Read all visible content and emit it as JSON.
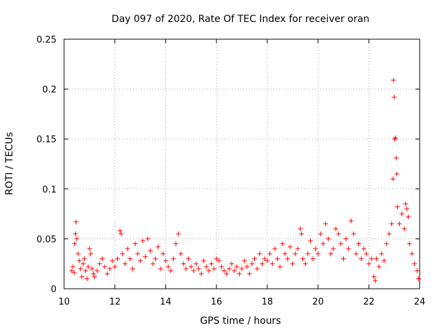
{
  "chart_data": {
    "type": "scatter",
    "title": "Day 097 of 2020, Rate Of TEC Index for receiver oran",
    "xlabel": "GPS time / hours",
    "ylabel": "ROTI / TECUs",
    "xlim": [
      10,
      24
    ],
    "ylim": [
      0,
      0.25
    ],
    "x_ticks": [
      10,
      12,
      14,
      16,
      18,
      20,
      22,
      24
    ],
    "x_tick_labels": [
      "10",
      "12",
      "14",
      "16",
      "18",
      "20",
      "22",
      "24"
    ],
    "y_ticks": [
      0,
      0.05,
      0.1,
      0.15,
      0.2,
      0.25
    ],
    "y_tick_labels": [
      "0",
      "0.05",
      "0.1",
      "0.15",
      "0.2",
      "0.25"
    ],
    "grid": true,
    "marker": "+",
    "color": "#ff0000",
    "series": [
      {
        "points": [
          [
            10.3,
            0.018
          ],
          [
            10.35,
            0.022
          ],
          [
            10.4,
            0.016
          ],
          [
            10.42,
            0.045
          ],
          [
            10.45,
            0.055
          ],
          [
            10.47,
            0.067
          ],
          [
            10.5,
            0.05
          ],
          [
            10.55,
            0.035
          ],
          [
            10.6,
            0.028
          ],
          [
            10.65,
            0.02
          ],
          [
            10.7,
            0.012
          ],
          [
            10.75,
            0.025
          ],
          [
            10.8,
            0.03
          ],
          [
            10.85,
            0.018
          ],
          [
            10.9,
            0.01
          ],
          [
            10.95,
            0.022
          ],
          [
            11.0,
            0.04
          ],
          [
            11.05,
            0.035
          ],
          [
            11.1,
            0.02
          ],
          [
            11.15,
            0.015
          ],
          [
            11.2,
            0.012
          ],
          [
            11.3,
            0.018
          ],
          [
            11.4,
            0.025
          ],
          [
            11.5,
            0.03
          ],
          [
            11.6,
            0.022
          ],
          [
            11.7,
            0.015
          ],
          [
            11.8,
            0.02
          ],
          [
            11.9,
            0.028
          ],
          [
            12.0,
            0.022
          ],
          [
            12.1,
            0.03
          ],
          [
            12.2,
            0.058
          ],
          [
            12.25,
            0.055
          ],
          [
            12.3,
            0.035
          ],
          [
            12.4,
            0.025
          ],
          [
            12.5,
            0.04
          ],
          [
            12.6,
            0.03
          ],
          [
            12.7,
            0.02
          ],
          [
            12.8,
            0.045
          ],
          [
            12.9,
            0.035
          ],
          [
            13.0,
            0.028
          ],
          [
            13.1,
            0.048
          ],
          [
            13.2,
            0.032
          ],
          [
            13.3,
            0.05
          ],
          [
            13.4,
            0.038
          ],
          [
            13.5,
            0.025
          ],
          [
            13.6,
            0.03
          ],
          [
            13.7,
            0.042
          ],
          [
            13.8,
            0.02
          ],
          [
            13.9,
            0.035
          ],
          [
            14.0,
            0.028
          ],
          [
            14.1,
            0.022
          ],
          [
            14.2,
            0.018
          ],
          [
            14.3,
            0.03
          ],
          [
            14.4,
            0.045
          ],
          [
            14.5,
            0.055
          ],
          [
            14.6,
            0.035
          ],
          [
            14.7,
            0.025
          ],
          [
            14.8,
            0.02
          ],
          [
            14.9,
            0.03
          ],
          [
            15.0,
            0.022
          ],
          [
            15.1,
            0.018
          ],
          [
            15.2,
            0.025
          ],
          [
            15.3,
            0.02
          ],
          [
            15.4,
            0.015
          ],
          [
            15.5,
            0.028
          ],
          [
            15.6,
            0.022
          ],
          [
            15.7,
            0.018
          ],
          [
            15.8,
            0.025
          ],
          [
            15.9,
            0.02
          ],
          [
            16.0,
            0.03
          ],
          [
            16.1,
            0.028
          ],
          [
            16.2,
            0.022
          ],
          [
            16.3,
            0.018
          ],
          [
            16.4,
            0.015
          ],
          [
            16.5,
            0.02
          ],
          [
            16.6,
            0.025
          ],
          [
            16.7,
            0.018
          ],
          [
            16.8,
            0.022
          ],
          [
            16.9,
            0.015
          ],
          [
            17.0,
            0.02
          ],
          [
            17.1,
            0.028
          ],
          [
            17.2,
            0.022
          ],
          [
            17.3,
            0.015
          ],
          [
            17.4,
            0.025
          ],
          [
            17.5,
            0.03
          ],
          [
            17.6,
            0.02
          ],
          [
            17.7,
            0.035
          ],
          [
            17.8,
            0.025
          ],
          [
            17.9,
            0.03
          ],
          [
            18.0,
            0.028
          ],
          [
            18.1,
            0.035
          ],
          [
            18.2,
            0.025
          ],
          [
            18.3,
            0.04
          ],
          [
            18.4,
            0.03
          ],
          [
            18.5,
            0.022
          ],
          [
            18.6,
            0.045
          ],
          [
            18.7,
            0.035
          ],
          [
            18.8,
            0.03
          ],
          [
            18.9,
            0.042
          ],
          [
            19.0,
            0.025
          ],
          [
            19.1,
            0.035
          ],
          [
            19.2,
            0.04
          ],
          [
            19.3,
            0.06
          ],
          [
            19.35,
            0.055
          ],
          [
            19.4,
            0.03
          ],
          [
            19.5,
            0.025
          ],
          [
            19.6,
            0.035
          ],
          [
            19.7,
            0.048
          ],
          [
            19.8,
            0.03
          ],
          [
            19.9,
            0.04
          ],
          [
            20.0,
            0.035
          ],
          [
            20.1,
            0.055
          ],
          [
            20.2,
            0.045
          ],
          [
            20.3,
            0.065
          ],
          [
            20.4,
            0.05
          ],
          [
            20.5,
            0.035
          ],
          [
            20.6,
            0.04
          ],
          [
            20.7,
            0.06
          ],
          [
            20.8,
            0.055
          ],
          [
            20.9,
            0.045
          ],
          [
            21.0,
            0.03
          ],
          [
            21.1,
            0.05
          ],
          [
            21.2,
            0.04
          ],
          [
            21.3,
            0.068
          ],
          [
            21.4,
            0.055
          ],
          [
            21.5,
            0.035
          ],
          [
            21.6,
            0.045
          ],
          [
            21.7,
            0.03
          ],
          [
            21.8,
            0.04
          ],
          [
            21.9,
            0.035
          ],
          [
            22.0,
            0.025
          ],
          [
            22.1,
            0.03
          ],
          [
            22.2,
            0.012
          ],
          [
            22.25,
            0.008
          ],
          [
            22.3,
            0.03
          ],
          [
            22.4,
            0.022
          ],
          [
            22.5,
            0.035
          ],
          [
            22.6,
            0.028
          ],
          [
            22.7,
            0.045
          ],
          [
            22.8,
            0.055
          ],
          [
            22.9,
            0.065
          ],
          [
            22.95,
            0.11
          ],
          [
            22.97,
            0.209
          ],
          [
            23.0,
            0.192
          ],
          [
            23.02,
            0.15
          ],
          [
            23.05,
            0.151
          ],
          [
            23.08,
            0.131
          ],
          [
            23.1,
            0.115
          ],
          [
            23.12,
            0.082
          ],
          [
            23.2,
            0.065
          ],
          [
            23.3,
            0.075
          ],
          [
            23.4,
            0.06
          ],
          [
            23.45,
            0.085
          ],
          [
            23.5,
            0.08
          ],
          [
            23.55,
            0.072
          ],
          [
            23.6,
            0.045
          ],
          [
            23.7,
            0.035
          ],
          [
            23.8,
            0.025
          ],
          [
            23.9,
            0.018
          ],
          [
            23.95,
            0.01
          ]
        ]
      }
    ]
  }
}
